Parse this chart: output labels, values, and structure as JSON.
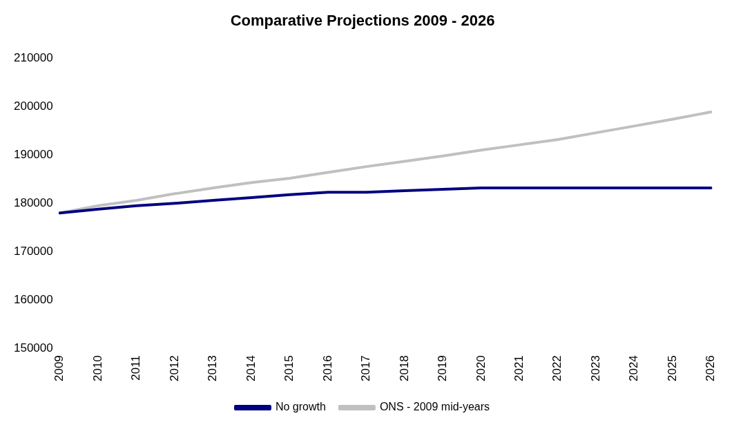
{
  "chart_data": {
    "type": "line",
    "title": "Comparative Projections 2009 - 2026",
    "categories": [
      "2009",
      "2010",
      "2011",
      "2012",
      "2013",
      "2014",
      "2015",
      "2016",
      "2017",
      "2018",
      "2019",
      "2020",
      "2021",
      "2022",
      "2023",
      "2024",
      "2025",
      "2026"
    ],
    "series": [
      {
        "name": "No growth",
        "color": "#000080",
        "values": [
          178000,
          178800,
          179500,
          180000,
          180600,
          181200,
          181800,
          182300,
          182300,
          182600,
          182900,
          183200,
          183200,
          183200,
          183200,
          183200,
          183200,
          183200
        ]
      },
      {
        "name": "ONS - 2009 mid-years",
        "color": "#c0c0c0",
        "values": [
          178000,
          179500,
          180600,
          182000,
          183200,
          184300,
          185200,
          186400,
          187600,
          188700,
          189800,
          191000,
          192100,
          193200,
          194600,
          196000,
          197400,
          198900
        ]
      }
    ],
    "ylim": [
      150000,
      210000
    ],
    "yticks": [
      150000,
      160000,
      170000,
      180000,
      190000,
      200000,
      210000
    ],
    "grid": false,
    "legend": "bottom",
    "marker": "none",
    "line_style": "solid"
  }
}
